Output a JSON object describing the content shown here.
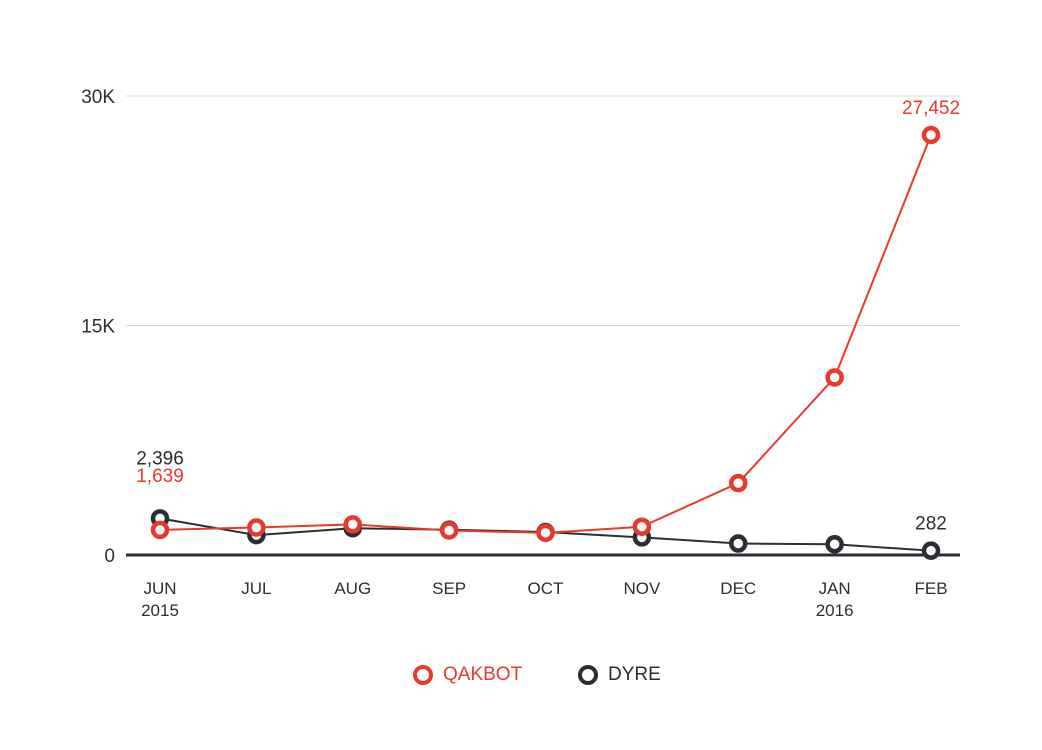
{
  "colors": {
    "qakbot": "#e8392d",
    "dyre": "#2b2e33",
    "grid": "#d9d9d9",
    "baseline": "#2b2e33"
  },
  "chart_data": {
    "type": "line",
    "categories": [
      "JUN",
      "JUL",
      "AUG",
      "SEP",
      "OCT",
      "NOV",
      "DEC",
      "JAN",
      "FEB"
    ],
    "category_sublabels": [
      "2015",
      "",
      "",
      "",
      "",
      "",
      "",
      "2016",
      ""
    ],
    "yticks": [
      "30K",
      "15K",
      "0"
    ],
    "ytick_values": [
      30000,
      15000,
      0
    ],
    "ylim": [
      0,
      30000
    ],
    "grid": true,
    "legend_position": "bottom-center",
    "series": [
      {
        "name": "QAKBOT",
        "color": "#e8392d",
        "values": [
          1639,
          1800,
          2000,
          1600,
          1450,
          1850,
          4700,
          11600,
          27452
        ]
      },
      {
        "name": "DYRE",
        "color": "#2b2e33",
        "values": [
          2396,
          1300,
          1750,
          1650,
          1500,
          1150,
          750,
          700,
          282
        ]
      }
    ],
    "annotations": [
      {
        "text": "2,396",
        "series": 1,
        "index": 0
      },
      {
        "text": "1,639",
        "series": 0,
        "index": 0
      },
      {
        "text": "27,452",
        "series": 0,
        "index": 8
      },
      {
        "text": "282",
        "series": 1,
        "index": 8
      }
    ]
  },
  "legend": {
    "items": [
      {
        "label": "QAKBOT",
        "color": "#e8392d"
      },
      {
        "label": "DYRE",
        "color": "#2b2e33"
      }
    ]
  }
}
